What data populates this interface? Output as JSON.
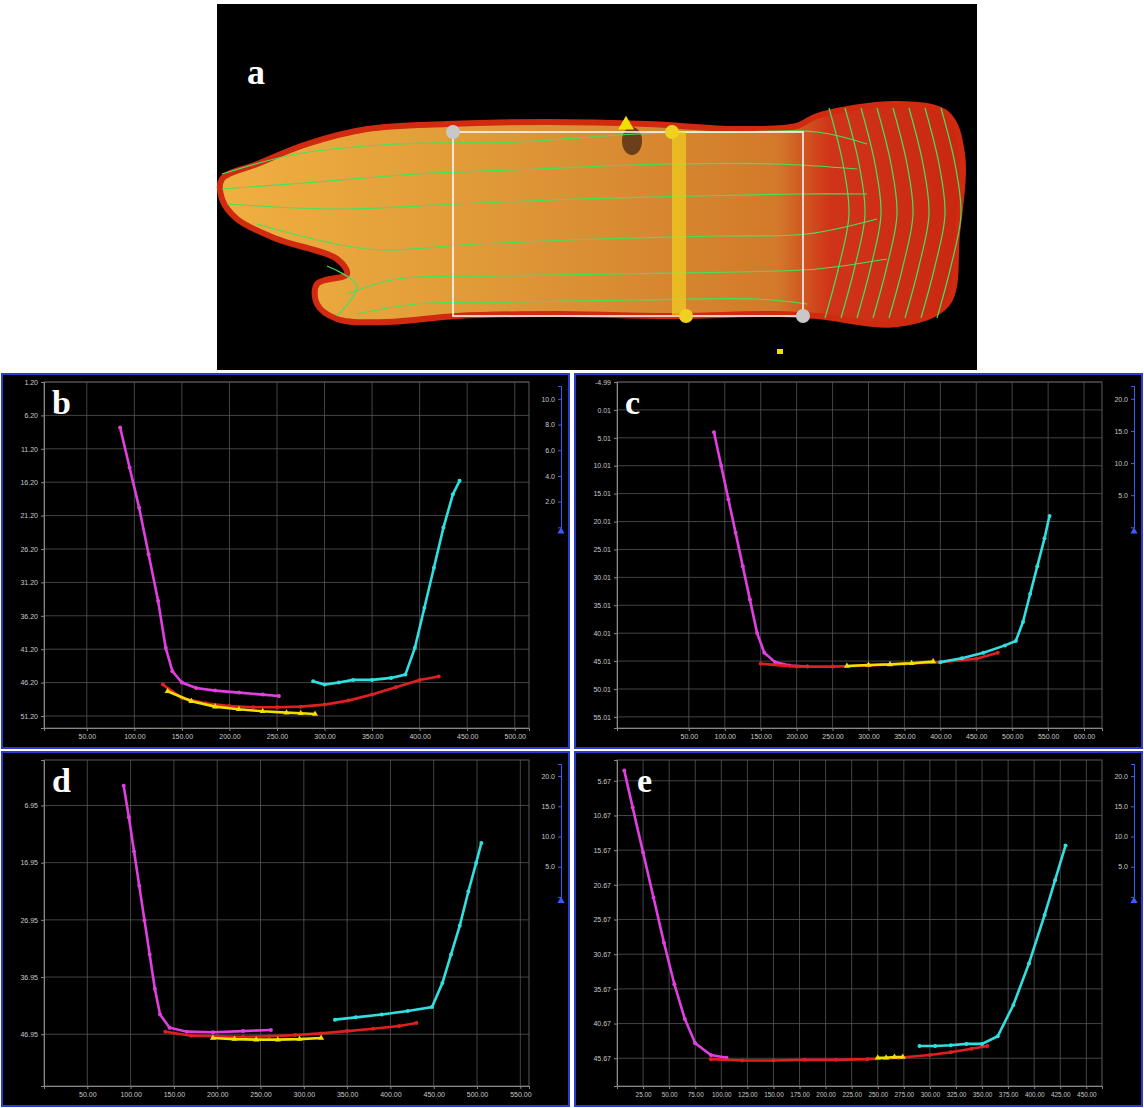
{
  "chart_data": [
    {
      "type": "map",
      "title": "a"
    },
    {
      "type": "scatter",
      "title": "b",
      "grid": true,
      "xlim": [
        5,
        515
      ],
      "ylim": [
        1.2,
        53
      ],
      "xticks": [
        {
          "value": 50,
          "label": "50.00"
        },
        {
          "value": 100,
          "label": "100.00"
        },
        {
          "value": 150,
          "label": "150.00"
        },
        {
          "value": 200,
          "label": "200.00"
        },
        {
          "value": 250,
          "label": "250.00"
        },
        {
          "value": 300,
          "label": "300.00"
        },
        {
          "value": 350,
          "label": "350.00"
        },
        {
          "value": 400,
          "label": "400.00"
        },
        {
          "value": 450,
          "label": "450.00"
        },
        {
          "value": 500,
          "label": "500.00"
        }
      ],
      "yticks": [
        {
          "value": 1.2,
          "label": "1.20"
        },
        {
          "value": 6.2,
          "label": "6.20"
        },
        {
          "value": 11.2,
          "label": "11.20"
        },
        {
          "value": 16.2,
          "label": "16.20"
        },
        {
          "value": 21.2,
          "label": "21.20"
        },
        {
          "value": 26.2,
          "label": "26.20"
        },
        {
          "value": 31.2,
          "label": "31.20"
        },
        {
          "value": 36.2,
          "label": "36.20"
        },
        {
          "value": 41.2,
          "label": "41.20"
        },
        {
          "value": 46.2,
          "label": "46.20"
        },
        {
          "value": 51.2,
          "label": "51.20"
        }
      ],
      "y2lim": [
        0,
        11
      ],
      "y2ticks": [
        {
          "value": 2,
          "label": "2.0"
        },
        {
          "value": 4,
          "label": "4.0"
        },
        {
          "value": 6,
          "label": "6.0"
        },
        {
          "value": 8,
          "label": "8.0"
        },
        {
          "value": 10,
          "label": "10.0"
        }
      ],
      "series": [
        {
          "color": "#e040e0",
          "marker": "circle",
          "line_style": "solid",
          "x": [
            85,
            95,
            105,
            115,
            125,
            133,
            140,
            150,
            165,
            185,
            210,
            235,
            252
          ],
          "values": [
            8,
            14,
            20,
            27,
            34,
            41,
            44.5,
            46.2,
            47.0,
            47.4,
            47.7,
            48.0,
            48.2
          ]
        },
        {
          "color": "#e02020",
          "marker": "circle",
          "line_style": "solid",
          "x": [
            130,
            150,
            175,
            200,
            225,
            250,
            275,
            300,
            325,
            350,
            375,
            400,
            420
          ],
          "values": [
            46.5,
            48.5,
            49.3,
            49.7,
            49.9,
            49.9,
            49.8,
            49.5,
            48.9,
            48.0,
            46.9,
            45.8,
            45.3
          ]
        },
        {
          "color": "#f0e000",
          "marker": "triangle",
          "line_style": "solid",
          "x": [
            135,
            160,
            185,
            210,
            235,
            260,
            275,
            290
          ],
          "values": [
            47.5,
            49.0,
            49.8,
            50.2,
            50.5,
            50.7,
            50.8,
            50.9
          ]
        },
        {
          "color": "#30e0e0",
          "marker": "circle",
          "line_style": "solid",
          "x": [
            288,
            300,
            315,
            330,
            350,
            370,
            385,
            395,
            405,
            415,
            425,
            435,
            442
          ],
          "values": [
            46.0,
            46.5,
            46.2,
            45.8,
            45.8,
            45.5,
            45.0,
            41,
            35,
            29,
            23,
            18,
            16
          ]
        }
      ]
    },
    {
      "type": "scatter",
      "title": "c",
      "grid": true,
      "xlim": [
        -50,
        625
      ],
      "ylim": [
        -4.99,
        57
      ],
      "xticks": [
        {
          "value": 50,
          "label": "50.00"
        },
        {
          "value": 100,
          "label": "100.00"
        },
        {
          "value": 150,
          "label": "150.00"
        },
        {
          "value": 200,
          "label": "200.00"
        },
        {
          "value": 250,
          "label": "250.00"
        },
        {
          "value": 300,
          "label": "300.00"
        },
        {
          "value": 350,
          "label": "350.00"
        },
        {
          "value": 400,
          "label": "400.00"
        },
        {
          "value": 450,
          "label": "450.00"
        },
        {
          "value": 500,
          "label": "500.00"
        },
        {
          "value": 550,
          "label": "550.00"
        },
        {
          "value": 600,
          "label": "600.00"
        }
      ],
      "yticks": [
        -4.99,
        0.01,
        5.01,
        10.01,
        15.01,
        20.01,
        25.01,
        30.01,
        35.01,
        40.01,
        45.01,
        50.01,
        55.01
      ],
      "y2lim": [
        0,
        22
      ],
      "y2ticks": [
        {
          "value": 5,
          "label": "5.0"
        },
        {
          "value": 10,
          "label": "10.0"
        },
        {
          "value": 15,
          "label": "15.0"
        },
        {
          "value": 20,
          "label": "20.0"
        }
      ],
      "series": [
        {
          "color": "#e040e0",
          "marker": "circle",
          "line_style": "solid",
          "x": [
            85,
            95,
            105,
            115,
            125,
            135,
            145,
            155,
            170,
            190,
            215
          ],
          "values": [
            4,
            10,
            16,
            22,
            28,
            34,
            40,
            43.5,
            45.2,
            45.8,
            46.0
          ]
        },
        {
          "color": "#e02020",
          "marker": "circle",
          "line_style": "solid",
          "x": [
            150,
            200,
            250,
            300,
            350,
            400,
            450,
            480
          ],
          "values": [
            45.5,
            46.0,
            46.0,
            45.8,
            45.5,
            45.2,
            44.6,
            43.5
          ]
        },
        {
          "color": "#f0e000",
          "marker": "triangle",
          "line_style": "solid",
          "x": [
            270,
            300,
            330,
            360,
            390
          ],
          "values": [
            45.9,
            45.7,
            45.6,
            45.4,
            45.1
          ]
        },
        {
          "color": "#30e0e0",
          "marker": "circle",
          "line_style": "solid",
          "x": [
            400,
            430,
            460,
            490,
            505,
            515,
            525,
            535,
            545,
            552
          ],
          "values": [
            45.2,
            44.5,
            43.5,
            42.2,
            41.4,
            38,
            33,
            28,
            23,
            19
          ]
        }
      ]
    },
    {
      "type": "scatter",
      "title": "d",
      "grid": true,
      "xlim": [
        0,
        560
      ],
      "ylim": [
        -1,
        56
      ],
      "xticks": [
        {
          "value": 50,
          "label": "50.00"
        },
        {
          "value": 100,
          "label": "100.00"
        },
        {
          "value": 150,
          "label": "150.00"
        },
        {
          "value": 200,
          "label": "200.00"
        },
        {
          "value": 250,
          "label": "250.00"
        },
        {
          "value": 300,
          "label": "300.00"
        },
        {
          "value": 350,
          "label": "350.00"
        },
        {
          "value": 400,
          "label": "400.00"
        },
        {
          "value": 450,
          "label": "450.00"
        },
        {
          "value": 500,
          "label": "500.00"
        },
        {
          "value": 550,
          "label": "550.00"
        }
      ],
      "yticks": [
        6.95,
        16.95,
        26.95,
        36.95,
        46.95
      ],
      "y2lim": [
        0,
        22
      ],
      "y2ticks": [
        {
          "value": 5,
          "label": "5.0"
        },
        {
          "value": 10,
          "label": "10.0"
        },
        {
          "value": 15,
          "label": "15.0"
        },
        {
          "value": 20,
          "label": "20.0"
        }
      ],
      "series": [
        {
          "color": "#e040e0",
          "marker": "circle",
          "line_style": "solid",
          "x": [
            92,
            98,
            104,
            110,
            116,
            122,
            128,
            134,
            145,
            165,
            195,
            230,
            262
          ],
          "values": [
            3.5,
            9,
            15,
            21,
            27,
            33,
            39,
            43.5,
            45.8,
            46.5,
            46.6,
            46.4,
            46.2
          ]
        },
        {
          "color": "#e02020",
          "marker": "circle",
          "line_style": "solid",
          "x": [
            140,
            170,
            200,
            230,
            260,
            290,
            320,
            350,
            380,
            410,
            430
          ],
          "values": [
            46.5,
            47.2,
            47.3,
            47.4,
            47.3,
            47.1,
            46.8,
            46.4,
            46.0,
            45.5,
            45.0
          ]
        },
        {
          "color": "#f0e000",
          "marker": "triangle",
          "line_style": "solid",
          "x": [
            195,
            220,
            245,
            270,
            295,
            320
          ],
          "values": [
            47.6,
            47.8,
            47.9,
            47.9,
            47.8,
            47.6
          ]
        },
        {
          "color": "#30e0e0",
          "marker": "circle",
          "line_style": "solid",
          "x": [
            336,
            360,
            390,
            420,
            448,
            460,
            470,
            480,
            490,
            499,
            505
          ],
          "values": [
            44.4,
            44.0,
            43.5,
            42.9,
            42.2,
            38,
            33,
            28,
            22,
            17,
            13.5
          ]
        }
      ]
    },
    {
      "type": "scatter",
      "title": "e",
      "grid": true,
      "xlim": [
        0,
        465
      ],
      "ylim": [
        2.67,
        49.67
      ],
      "xticks": [
        {
          "value": 25,
          "label": "25.00"
        },
        {
          "value": 50,
          "label": "50.00"
        },
        {
          "value": 75,
          "label": "75.00"
        },
        {
          "value": 100,
          "label": "100.00"
        },
        {
          "value": 125,
          "label": "125.00"
        },
        {
          "value": 150,
          "label": "150.00"
        },
        {
          "value": 175,
          "label": "175.00"
        },
        {
          "value": 200,
          "label": "200.00"
        },
        {
          "value": 225,
          "label": "225.00"
        },
        {
          "value": 250,
          "label": "250.00"
        },
        {
          "value": 275,
          "label": "275.00"
        },
        {
          "value": 300,
          "label": "300.00"
        },
        {
          "value": 325,
          "label": "325.00"
        },
        {
          "value": 350,
          "label": "350.00"
        },
        {
          "value": 375,
          "label": "375.00"
        },
        {
          "value": 400,
          "label": "400.00"
        },
        {
          "value": 425,
          "label": "425.00"
        },
        {
          "value": 450,
          "label": "450.00"
        }
      ],
      "yticks": [
        5.67,
        10.67,
        15.67,
        20.67,
        25.67,
        30.67,
        35.67,
        40.67,
        45.67
      ],
      "y2lim": [
        0,
        22
      ],
      "y2ticks": [
        {
          "value": 5,
          "label": "5.0"
        },
        {
          "value": 10,
          "label": "10.0"
        },
        {
          "value": 15,
          "label": "15.0"
        },
        {
          "value": 20,
          "label": "20.0"
        }
      ],
      "series": [
        {
          "color": "#e040e0",
          "marker": "circle",
          "line_style": "solid",
          "x": [
            7,
            15,
            25,
            35,
            45,
            55,
            65,
            75,
            90,
            105
          ],
          "values": [
            4.2,
            9.5,
            16,
            22.5,
            29,
            35,
            40,
            43.5,
            45.2,
            45.6
          ]
        },
        {
          "color": "#e02020",
          "marker": "circle",
          "line_style": "solid",
          "x": [
            90,
            120,
            150,
            180,
            210,
            240,
            270,
            300,
            320,
            340,
            355
          ],
          "values": [
            45.8,
            46.0,
            46.0,
            45.9,
            45.9,
            45.8,
            45.6,
            45.2,
            44.8,
            44.3,
            43.9
          ]
        },
        {
          "color": "#f0e000",
          "marker": "triangle",
          "line_style": "solid",
          "x": [
            250,
            258,
            266,
            274
          ],
          "values": [
            45.6,
            45.6,
            45.5,
            45.5
          ]
        },
        {
          "color": "#30e0e0",
          "marker": "circle",
          "line_style": "solid",
          "x": [
            290,
            305,
            320,
            335,
            350,
            365,
            380,
            395,
            410,
            420,
            430
          ],
          "values": [
            43.9,
            43.9,
            43.8,
            43.6,
            43.6,
            42.5,
            38,
            32,
            25,
            20,
            15
          ]
        }
      ]
    }
  ]
}
